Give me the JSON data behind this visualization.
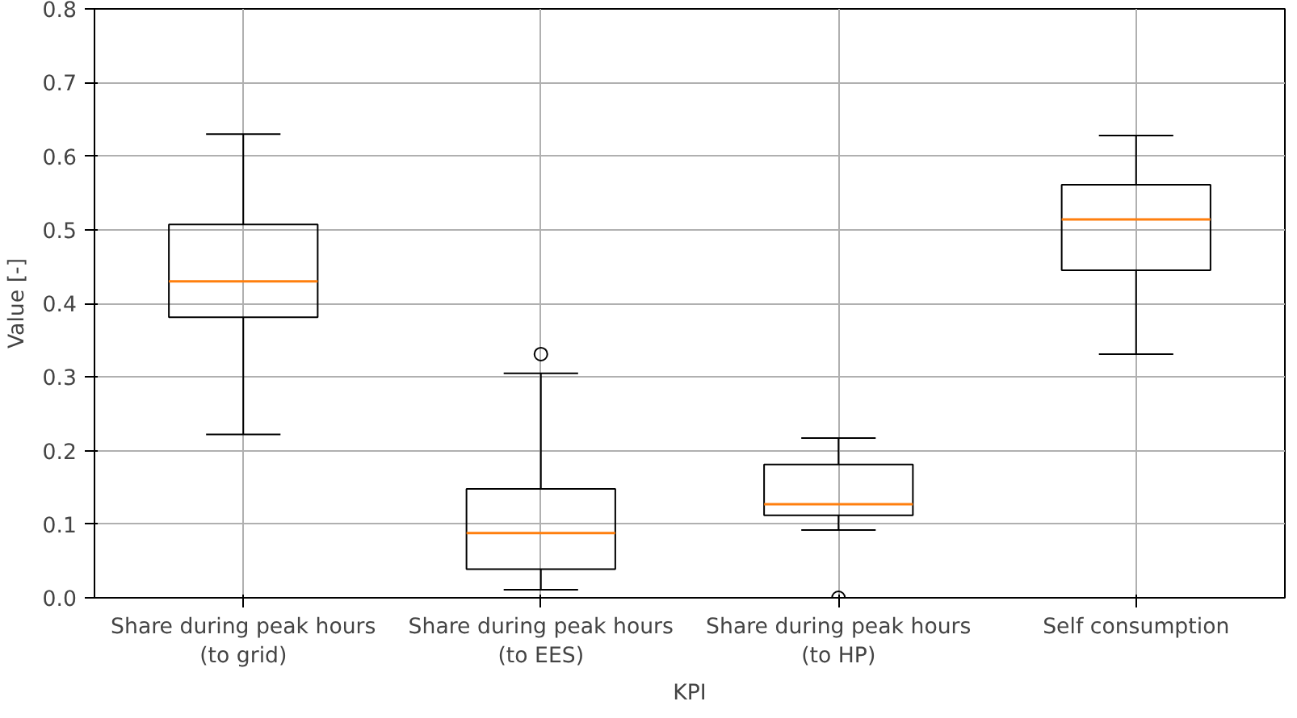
{
  "chart_data": {
    "type": "box",
    "xlabel": "KPI",
    "ylabel": "Value [-]",
    "categories": [
      "Share during peak hours\n(to grid)",
      "Share during peak hours\n(to EES)",
      "Share during peak hours\n(to HP)",
      "Self consumption"
    ],
    "boxes": [
      {
        "low": 0.222,
        "q1": 0.381,
        "median": 0.43,
        "q3": 0.507,
        "high": 0.63
      },
      {
        "low": 0.011,
        "q1": 0.039,
        "median": 0.088,
        "q3": 0.148,
        "high": 0.305,
        "outliers": [
          0.331
        ]
      },
      {
        "low": 0.092,
        "q1": 0.112,
        "median": 0.127,
        "q3": 0.181,
        "high": 0.217,
        "outliers": [
          0.0
        ]
      },
      {
        "low": 0.331,
        "q1": 0.445,
        "median": 0.514,
        "q3": 0.561,
        "high": 0.628
      }
    ],
    "color": "#000000",
    "ylim": [
      0,
      0.8
    ],
    "yticks": [
      {
        "value": 0,
        "label": "0.0"
      },
      0.1,
      0.2,
      0.3,
      0.4,
      0.5,
      0.6,
      0.7,
      0.8
    ],
    "grid": true
  }
}
